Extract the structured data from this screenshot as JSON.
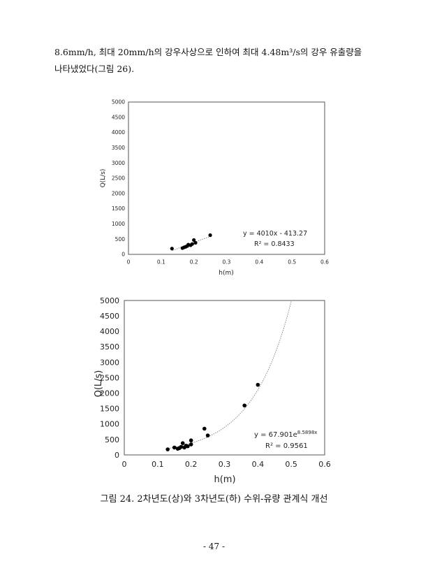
{
  "paragraph": {
    "line1": "8.6mm/h, 최대 20mm/h의 강우사상으로 인하여 최대 4.48m³/s의 강우 유출량을",
    "line2": "나타냈었다(그림 26)."
  },
  "caption": "그림 24. 2차년도(상)와 3차년도(하) 수위-유량 관계식 개선",
  "page_number": "- 47 -",
  "chart_data": [
    {
      "type": "scatter",
      "xlabel": "h(m)",
      "ylabel": "Q(L/s)",
      "xlim": [
        0,
        0.6
      ],
      "ylim": [
        0,
        5000
      ],
      "xticks": [
        "0",
        "0.1",
        "0.2",
        "0.3",
        "0.4",
        "0.5",
        "0.6"
      ],
      "yticks": [
        "0",
        "500",
        "1000",
        "1500",
        "2000",
        "2500",
        "3000",
        "3500",
        "4000",
        "4500",
        "5000"
      ],
      "trendline": {
        "type": "linear",
        "slope": 4010,
        "intercept": -413.27,
        "x_range": [
          0.135,
          0.25
        ]
      },
      "annotation": {
        "equation": "y = 4010x - 413.27",
        "r2": "R² = 0.8433"
      },
      "points": [
        {
          "x": 0.133,
          "y": 190
        },
        {
          "x": 0.165,
          "y": 205
        },
        {
          "x": 0.17,
          "y": 230
        },
        {
          "x": 0.175,
          "y": 250
        },
        {
          "x": 0.18,
          "y": 275
        },
        {
          "x": 0.183,
          "y": 320
        },
        {
          "x": 0.19,
          "y": 300
        },
        {
          "x": 0.195,
          "y": 340
        },
        {
          "x": 0.2,
          "y": 470
        },
        {
          "x": 0.205,
          "y": 380
        },
        {
          "x": 0.25,
          "y": 630
        }
      ],
      "grid": false,
      "legend": "none"
    },
    {
      "type": "scatter",
      "xlabel": "h(m)",
      "ylabel": "Q(L/s)",
      "xlim": [
        0,
        0.6
      ],
      "ylim": [
        0,
        5000
      ],
      "xticks": [
        "0",
        "0.1",
        "0.2",
        "0.3",
        "0.4",
        "0.5",
        "0.6"
      ],
      "yticks": [
        "0",
        "500",
        "1000",
        "1500",
        "2000",
        "2500",
        "3000",
        "3500",
        "4000",
        "4500",
        "5000"
      ],
      "trendline": {
        "type": "exponential",
        "a": 67.901,
        "b": 8.5898,
        "x_range": [
          0.13,
          0.5
        ]
      },
      "annotation": {
        "equation_base": "y = 67.901e",
        "equation_exp": "8.5898x",
        "r2": "R² = 0.9561"
      },
      "points": [
        {
          "x": 0.13,
          "y": 180
        },
        {
          "x": 0.15,
          "y": 240
        },
        {
          "x": 0.16,
          "y": 200
        },
        {
          "x": 0.165,
          "y": 220
        },
        {
          "x": 0.17,
          "y": 260
        },
        {
          "x": 0.175,
          "y": 380
        },
        {
          "x": 0.18,
          "y": 240
        },
        {
          "x": 0.185,
          "y": 300
        },
        {
          "x": 0.19,
          "y": 280
        },
        {
          "x": 0.2,
          "y": 470
        },
        {
          "x": 0.2,
          "y": 340
        },
        {
          "x": 0.24,
          "y": 850
        },
        {
          "x": 0.25,
          "y": 630
        },
        {
          "x": 0.36,
          "y": 1600
        },
        {
          "x": 0.4,
          "y": 2270
        }
      ],
      "grid": false,
      "legend": "none"
    }
  ]
}
